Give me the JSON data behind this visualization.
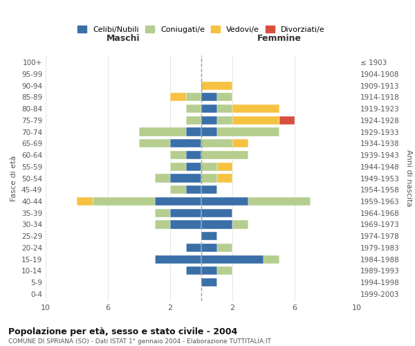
{
  "age_groups": [
    "0-4",
    "5-9",
    "10-14",
    "15-19",
    "20-24",
    "25-29",
    "30-34",
    "35-39",
    "40-44",
    "45-49",
    "50-54",
    "55-59",
    "60-64",
    "65-69",
    "70-74",
    "75-79",
    "80-84",
    "85-89",
    "90-94",
    "95-99",
    "100+"
  ],
  "birth_years": [
    "1999-2003",
    "1994-1998",
    "1989-1993",
    "1984-1988",
    "1979-1983",
    "1974-1978",
    "1969-1973",
    "1964-1968",
    "1959-1963",
    "1954-1958",
    "1949-1953",
    "1944-1948",
    "1939-1943",
    "1934-1938",
    "1929-1933",
    "1924-1928",
    "1919-1923",
    "1914-1918",
    "1909-1913",
    "1904-1908",
    "≤ 1903"
  ],
  "maschi": {
    "celibi": [
      0,
      0,
      1,
      3,
      1,
      0,
      2,
      2,
      3,
      1,
      2,
      1,
      1,
      2,
      1,
      0,
      0,
      0,
      0,
      0,
      0
    ],
    "coniugati": [
      0,
      0,
      0,
      0,
      0,
      0,
      1,
      1,
      4,
      1,
      1,
      1,
      1,
      2,
      3,
      1,
      1,
      1,
      0,
      0,
      0
    ],
    "vedovi": [
      0,
      0,
      0,
      0,
      0,
      0,
      0,
      0,
      1,
      0,
      0,
      0,
      0,
      0,
      0,
      0,
      0,
      1,
      0,
      0,
      0
    ],
    "divorziati": [
      0,
      0,
      0,
      0,
      0,
      0,
      0,
      0,
      0,
      0,
      0,
      0,
      0,
      0,
      0,
      0,
      0,
      0,
      0,
      0,
      0
    ]
  },
  "femmine": {
    "nubili": [
      0,
      1,
      1,
      4,
      1,
      1,
      2,
      2,
      3,
      1,
      0,
      0,
      0,
      0,
      1,
      1,
      1,
      1,
      0,
      0,
      0
    ],
    "coniugate": [
      0,
      0,
      1,
      1,
      1,
      0,
      1,
      0,
      4,
      0,
      1,
      1,
      3,
      2,
      4,
      1,
      1,
      1,
      0,
      0,
      0
    ],
    "vedove": [
      0,
      0,
      0,
      0,
      0,
      0,
      0,
      0,
      0,
      0,
      1,
      1,
      0,
      1,
      0,
      3,
      3,
      0,
      2,
      0,
      0
    ],
    "divorziate": [
      0,
      0,
      0,
      0,
      0,
      0,
      0,
      0,
      0,
      0,
      0,
      0,
      0,
      0,
      0,
      1,
      0,
      0,
      0,
      0,
      0
    ]
  },
  "colors": {
    "celibi_nubili": "#3a6fa8",
    "coniugati_e": "#b5cd8e",
    "vedovi_e": "#f5c242",
    "divorziati_e": "#d94f3d"
  },
  "title": "Popolazione per età, sesso e stato civile - 2004",
  "subtitle": "COMUNE DI SPRIANA (SO) - Dati ISTAT 1° gennaio 2004 - Elaborazione TUTTITALIA.IT",
  "ylabel_left": "Fasce di età",
  "ylabel_right": "Anni di nascita",
  "xlabel_left": "Maschi",
  "xlabel_right": "Femmine",
  "xlim": 10,
  "legend_labels": [
    "Celibi/Nubili",
    "Coniugati/e",
    "Vedovi/e",
    "Divorziati/e"
  ],
  "background_color": "#ffffff",
  "grid_color": "#cccccc"
}
